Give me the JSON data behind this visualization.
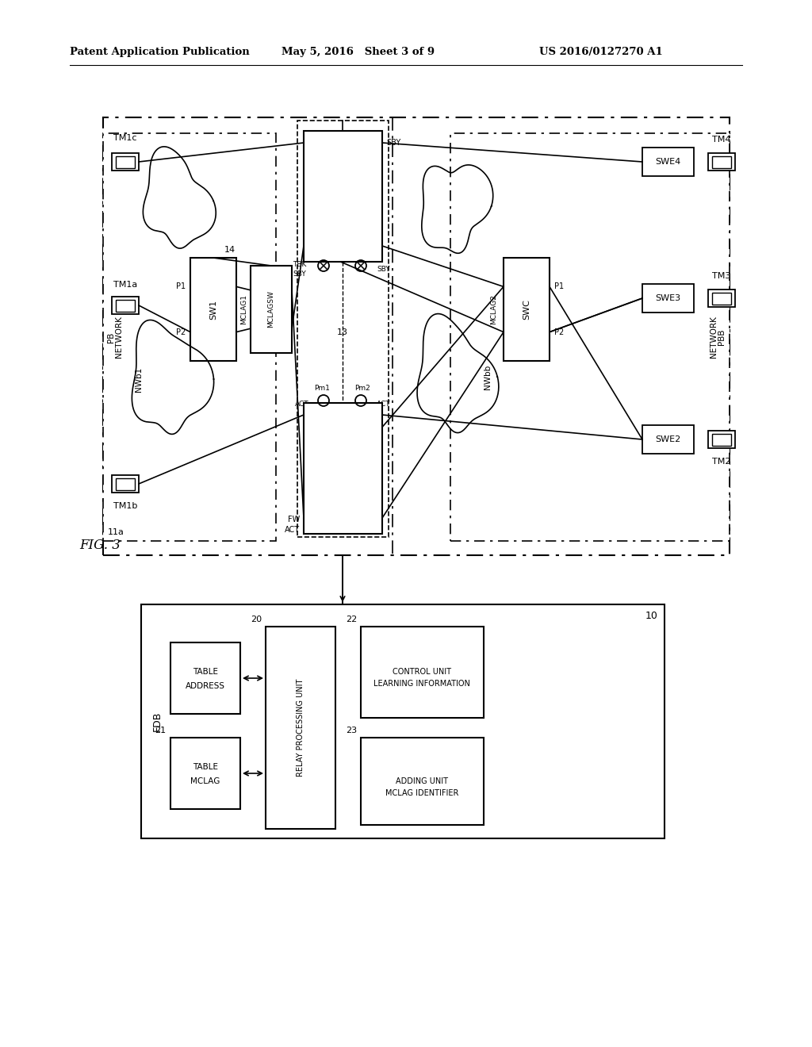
{
  "title_left": "Patent Application Publication",
  "title_mid": "May 5, 2016   Sheet 3 of 9",
  "title_right": "US 2016/0127270 A1",
  "fig_label": "FIG. 3",
  "background_color": "#ffffff",
  "line_color": "#000000"
}
